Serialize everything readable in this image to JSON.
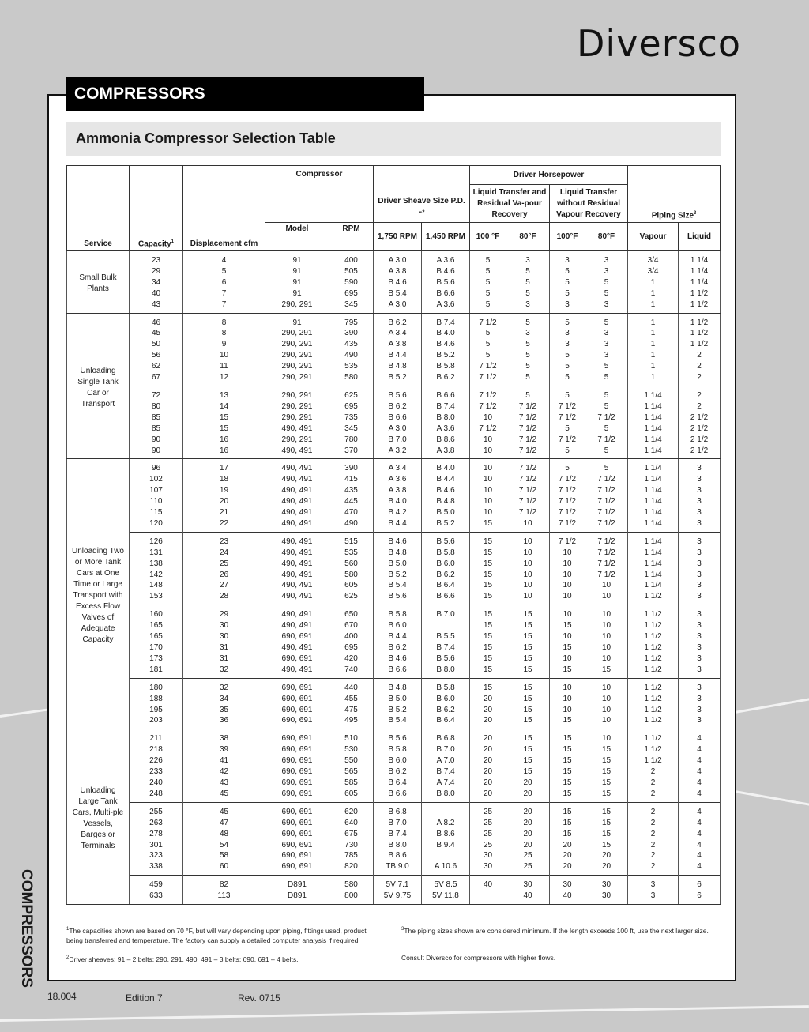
{
  "brand": {
    "logo": "Diversco"
  },
  "section": {
    "title": "COMPRESSORS",
    "side_label": "COMPRESSORS"
  },
  "table_title": "Ammonia Compressor Selection Table",
  "headers": {
    "service": "Service",
    "capacity": "Capacity",
    "capacity_note": "1",
    "displacement": "Displacement cfm",
    "compressor": "Compressor",
    "model": "Model",
    "rpm": "RPM",
    "sheave": "Driver Sheave Size P.D. \"",
    "sheave_note": "2",
    "rpm1750": "1,750 RPM",
    "rpm1450": "1,450 RPM",
    "driver_hp": "Driver Horsepower",
    "with_recovery": "Liquid Transfer and Residual Va-pour Recovery",
    "without_recovery": "Liquid Transfer without Residual Vapour Recovery",
    "f100a": "100 °F",
    "f80a": "80°F",
    "f100b": "100°F",
    "f80b": "80°F",
    "piping": "Piping Size",
    "piping_note": "3",
    "vapour": "Vapour",
    "liquid": "Liquid"
  },
  "groups": [
    {
      "service": "Small Bulk Plants",
      "blocks": [
        [
          [
            "23",
            "4",
            "91",
            "400",
            "A 3.0",
            "A 3.6",
            "5",
            "3",
            "3",
            "3",
            "3/4",
            "1 1/4"
          ],
          [
            "29",
            "5",
            "91",
            "505",
            "A 3.8",
            "B 4.6",
            "5",
            "5",
            "5",
            "3",
            "3/4",
            "1 1/4"
          ],
          [
            "34",
            "6",
            "91",
            "590",
            "B 4.6",
            "B 5.6",
            "5",
            "5",
            "5",
            "5",
            "1",
            "1 1/4"
          ],
          [
            "40",
            "7",
            "91",
            "695",
            "B 5.4",
            "B 6.6",
            "5",
            "5",
            "5",
            "5",
            "1",
            "1 1/2"
          ],
          [
            "43",
            "7",
            "290, 291",
            "345",
            "A 3.0",
            "A 3.6",
            "5",
            "3",
            "3",
            "3",
            "1",
            "1 1/2"
          ]
        ]
      ]
    },
    {
      "service": "Unloading Single Tank Car or Transport",
      "blocks": [
        [
          [
            "46",
            "8",
            "91",
            "795",
            "B 6.2",
            "B 7.4",
            "7 1/2",
            "5",
            "5",
            "5",
            "1",
            "1 1/2"
          ],
          [
            "45",
            "8",
            "290, 291",
            "390",
            "A 3.4",
            "B 4.0",
            "5",
            "3",
            "3",
            "3",
            "1",
            "1 1/2"
          ],
          [
            "50",
            "9",
            "290, 291",
            "435",
            "A 3.8",
            "B 4.6",
            "5",
            "5",
            "3",
            "3",
            "1",
            "1 1/2"
          ],
          [
            "56",
            "10",
            "290, 291",
            "490",
            "B 4.4",
            "B 5.2",
            "5",
            "5",
            "5",
            "3",
            "1",
            "2"
          ],
          [
            "62",
            "11",
            "290, 291",
            "535",
            "B 4.8",
            "B 5.8",
            "7 1/2",
            "5",
            "5",
            "5",
            "1",
            "2"
          ],
          [
            "67",
            "12",
            "290, 291",
            "580",
            "B 5.2",
            "B 6.2",
            "7 1/2",
            "5",
            "5",
            "5",
            "1",
            "2"
          ]
        ],
        [
          [
            "72",
            "13",
            "290, 291",
            "625",
            "B 5.6",
            "B 6.6",
            "7 1/2",
            "5",
            "5",
            "5",
            "1 1/4",
            "2"
          ],
          [
            "80",
            "14",
            "290, 291",
            "695",
            "B 6.2",
            "B 7.4",
            "7 1/2",
            "7 1/2",
            "7 1/2",
            "5",
            "1 1/4",
            "2"
          ],
          [
            "85",
            "15",
            "290, 291",
            "735",
            "B 6.6",
            "B 8.0",
            "10",
            "7 1/2",
            "7 1/2",
            "7 1/2",
            "1 1/4",
            "2 1/2"
          ],
          [
            "85",
            "15",
            "490, 491",
            "345",
            "A 3.0",
            "A 3.6",
            "7 1/2",
            "7 1/2",
            "5",
            "5",
            "1 1/4",
            "2 1/2"
          ],
          [
            "90",
            "16",
            "290, 291",
            "780",
            "B 7.0",
            "B 8.6",
            "10",
            "7 1/2",
            "7 1/2",
            "7 1/2",
            "1 1/4",
            "2 1/2"
          ],
          [
            "90",
            "16",
            "490, 491",
            "370",
            "A 3.2",
            "A 3.8",
            "10",
            "7 1/2",
            "5",
            "5",
            "1 1/4",
            "2 1/2"
          ]
        ]
      ]
    },
    {
      "service": "Unloading Two or More Tank Cars at One Time or Large Transport with Excess Flow Valves of Adequate Capacity",
      "blocks": [
        [
          [
            "96",
            "17",
            "490, 491",
            "390",
            "A 3.4",
            "B 4.0",
            "10",
            "7 1/2",
            "5",
            "5",
            "1 1/4",
            "3"
          ],
          [
            "102",
            "18",
            "490, 491",
            "415",
            "A 3.6",
            "B 4.4",
            "10",
            "7 1/2",
            "7 1/2",
            "7 1/2",
            "1 1/4",
            "3"
          ],
          [
            "107",
            "19",
            "490, 491",
            "435",
            "A 3.8",
            "B 4.6",
            "10",
            "7 1/2",
            "7 1/2",
            "7 1/2",
            "1 1/4",
            "3"
          ],
          [
            "110",
            "20",
            "490, 491",
            "445",
            "B 4.0",
            "B 4.8",
            "10",
            "7 1/2",
            "7 1/2",
            "7 1/2",
            "1 1/4",
            "3"
          ],
          [
            "115",
            "21",
            "490, 491",
            "470",
            "B 4.2",
            "B 5.0",
            "10",
            "7 1/2",
            "7 1/2",
            "7 1/2",
            "1 1/4",
            "3"
          ],
          [
            "120",
            "22",
            "490, 491",
            "490",
            "B 4.4",
            "B 5.2",
            "15",
            "10",
            "7 1/2",
            "7 1/2",
            "1 1/4",
            "3"
          ]
        ],
        [
          [
            "126",
            "23",
            "490, 491",
            "515",
            "B 4.6",
            "B 5.6",
            "15",
            "10",
            "7 1/2",
            "7 1/2",
            "1 1/4",
            "3"
          ],
          [
            "131",
            "24",
            "490, 491",
            "535",
            "B 4.8",
            "B 5.8",
            "15",
            "10",
            "10",
            "7 1/2",
            "1 1/4",
            "3"
          ],
          [
            "138",
            "25",
            "490, 491",
            "560",
            "B 5.0",
            "B 6.0",
            "15",
            "10",
            "10",
            "7 1/2",
            "1 1/4",
            "3"
          ],
          [
            "142",
            "26",
            "490, 491",
            "580",
            "B 5.2",
            "B 6.2",
            "15",
            "10",
            "10",
            "7 1/2",
            "1 1/4",
            "3"
          ],
          [
            "148",
            "27",
            "490, 491",
            "605",
            "B 5.4",
            "B 6.4",
            "15",
            "10",
            "10",
            "10",
            "1 1/4",
            "3"
          ],
          [
            "153",
            "28",
            "490, 491",
            "625",
            "B 5.6",
            "B 6.6",
            "15",
            "10",
            "10",
            "10",
            "1 1/2",
            "3"
          ]
        ],
        [
          [
            "160",
            "29",
            "490, 491",
            "650",
            "B 5.8",
            "B 7.0",
            "15",
            "15",
            "10",
            "10",
            "1 1/2",
            "3"
          ],
          [
            "165",
            "30",
            "490, 491",
            "670",
            "B 6.0",
            "",
            "15",
            "15",
            "15",
            "10",
            "1 1/2",
            "3"
          ],
          [
            "165",
            "30",
            "690, 691",
            "400",
            "B 4.4",
            "B 5.5",
            "15",
            "15",
            "10",
            "10",
            "1 1/2",
            "3"
          ],
          [
            "170",
            "31",
            "490, 491",
            "695",
            "B 6.2",
            "B 7.4",
            "15",
            "15",
            "15",
            "10",
            "1 1/2",
            "3"
          ],
          [
            "173",
            "31",
            "690, 691",
            "420",
            "B 4.6",
            "B 5.6",
            "15",
            "15",
            "10",
            "10",
            "1 1/2",
            "3"
          ],
          [
            "181",
            "32",
            "490, 491",
            "740",
            "B 6.6",
            "B 8.0",
            "15",
            "15",
            "15",
            "15",
            "1 1/2",
            "3"
          ]
        ],
        [
          [
            "180",
            "32",
            "690, 691",
            "440",
            "B 4.8",
            "B 5.8",
            "15",
            "15",
            "10",
            "10",
            "1 1/2",
            "3"
          ],
          [
            "188",
            "34",
            "690, 691",
            "455",
            "B 5.0",
            "B 6.0",
            "20",
            "15",
            "10",
            "10",
            "1 1/2",
            "3"
          ],
          [
            "195",
            "35",
            "690, 691",
            "475",
            "B 5.2",
            "B 6.2",
            "20",
            "15",
            "10",
            "10",
            "1 1/2",
            "3"
          ],
          [
            "203",
            "36",
            "690, 691",
            "495",
            "B 5.4",
            "B 6.4",
            "20",
            "15",
            "15",
            "10",
            "1 1/2",
            "3"
          ]
        ]
      ]
    },
    {
      "service": "Unloading Large Tank Cars, Multi-ple Vessels, Barges or Terminals",
      "blocks": [
        [
          [
            "211",
            "38",
            "690, 691",
            "510",
            "B 5.6",
            "B 6.8",
            "20",
            "15",
            "15",
            "10",
            "1 1/2",
            "4"
          ],
          [
            "218",
            "39",
            "690, 691",
            "530",
            "B 5.8",
            "B 7.0",
            "20",
            "15",
            "15",
            "15",
            "1 1/2",
            "4"
          ],
          [
            "226",
            "41",
            "690, 691",
            "550",
            "B 6.0",
            "A 7.0",
            "20",
            "15",
            "15",
            "15",
            "1 1/2",
            "4"
          ],
          [
            "233",
            "42",
            "690, 691",
            "565",
            "B 6.2",
            "B 7.4",
            "20",
            "15",
            "15",
            "15",
            "2",
            "4"
          ],
          [
            "240",
            "43",
            "690, 691",
            "585",
            "B 6.4",
            "A 7.4",
            "20",
            "20",
            "15",
            "15",
            "2",
            "4"
          ],
          [
            "248",
            "45",
            "690, 691",
            "605",
            "B 6.6",
            "B 8.0",
            "20",
            "20",
            "15",
            "15",
            "2",
            "4"
          ]
        ],
        [
          [
            "255",
            "45",
            "690, 691",
            "620",
            "B 6.8",
            "",
            "25",
            "20",
            "15",
            "15",
            "2",
            "4"
          ],
          [
            "263",
            "47",
            "690, 691",
            "640",
            "B 7.0",
            "A 8.2",
            "25",
            "20",
            "15",
            "15",
            "2",
            "4"
          ],
          [
            "278",
            "48",
            "690, 691",
            "675",
            "B 7.4",
            "B 8.6",
            "25",
            "20",
            "15",
            "15",
            "2",
            "4"
          ],
          [
            "301",
            "54",
            "690, 691",
            "730",
            "B 8.0",
            "B 9.4",
            "25",
            "20",
            "20",
            "15",
            "2",
            "4"
          ],
          [
            "323",
            "58",
            "690, 691",
            "785",
            "B 8.6",
            "",
            "30",
            "25",
            "20",
            "20",
            "2",
            "4"
          ],
          [
            "338",
            "60",
            "690, 691",
            "820",
            "TB 9.0",
            "A 10.6",
            "30",
            "25",
            "20",
            "20",
            "2",
            "4"
          ]
        ],
        [
          [
            "459",
            "82",
            "D891",
            "580",
            "5V 7.1",
            "5V 8.5",
            "40",
            "30",
            "30",
            "30",
            "3",
            "6"
          ],
          [
            "633",
            "113",
            "D891",
            "800",
            "5V 9.75",
            "5V 11.8",
            "",
            "40",
            "40",
            "30",
            "3",
            "6"
          ]
        ]
      ]
    }
  ],
  "footnotes": {
    "n1_mark": "1",
    "n1": "The capacities shown are based on 70 °F, but will vary depending upon piping, fittings used, product being transferred and temperature. The factory can supply a detailed computer analysis if required.",
    "n2_mark": "2",
    "n2": "Driver sheaves: 91 – 2 belts; 290, 291, 490, 491 – 3 belts; 690, 691 – 4 belts.",
    "n3_mark": "3",
    "n3": "The piping sizes shown are considered minimum. If the length exceeds 100 ft, use the next larger size.",
    "consult": "Consult Diversco for compressors with higher flows."
  },
  "page_footer": {
    "page": "18.004",
    "edition": "Edition 7",
    "revision": "Rev. 0715"
  }
}
